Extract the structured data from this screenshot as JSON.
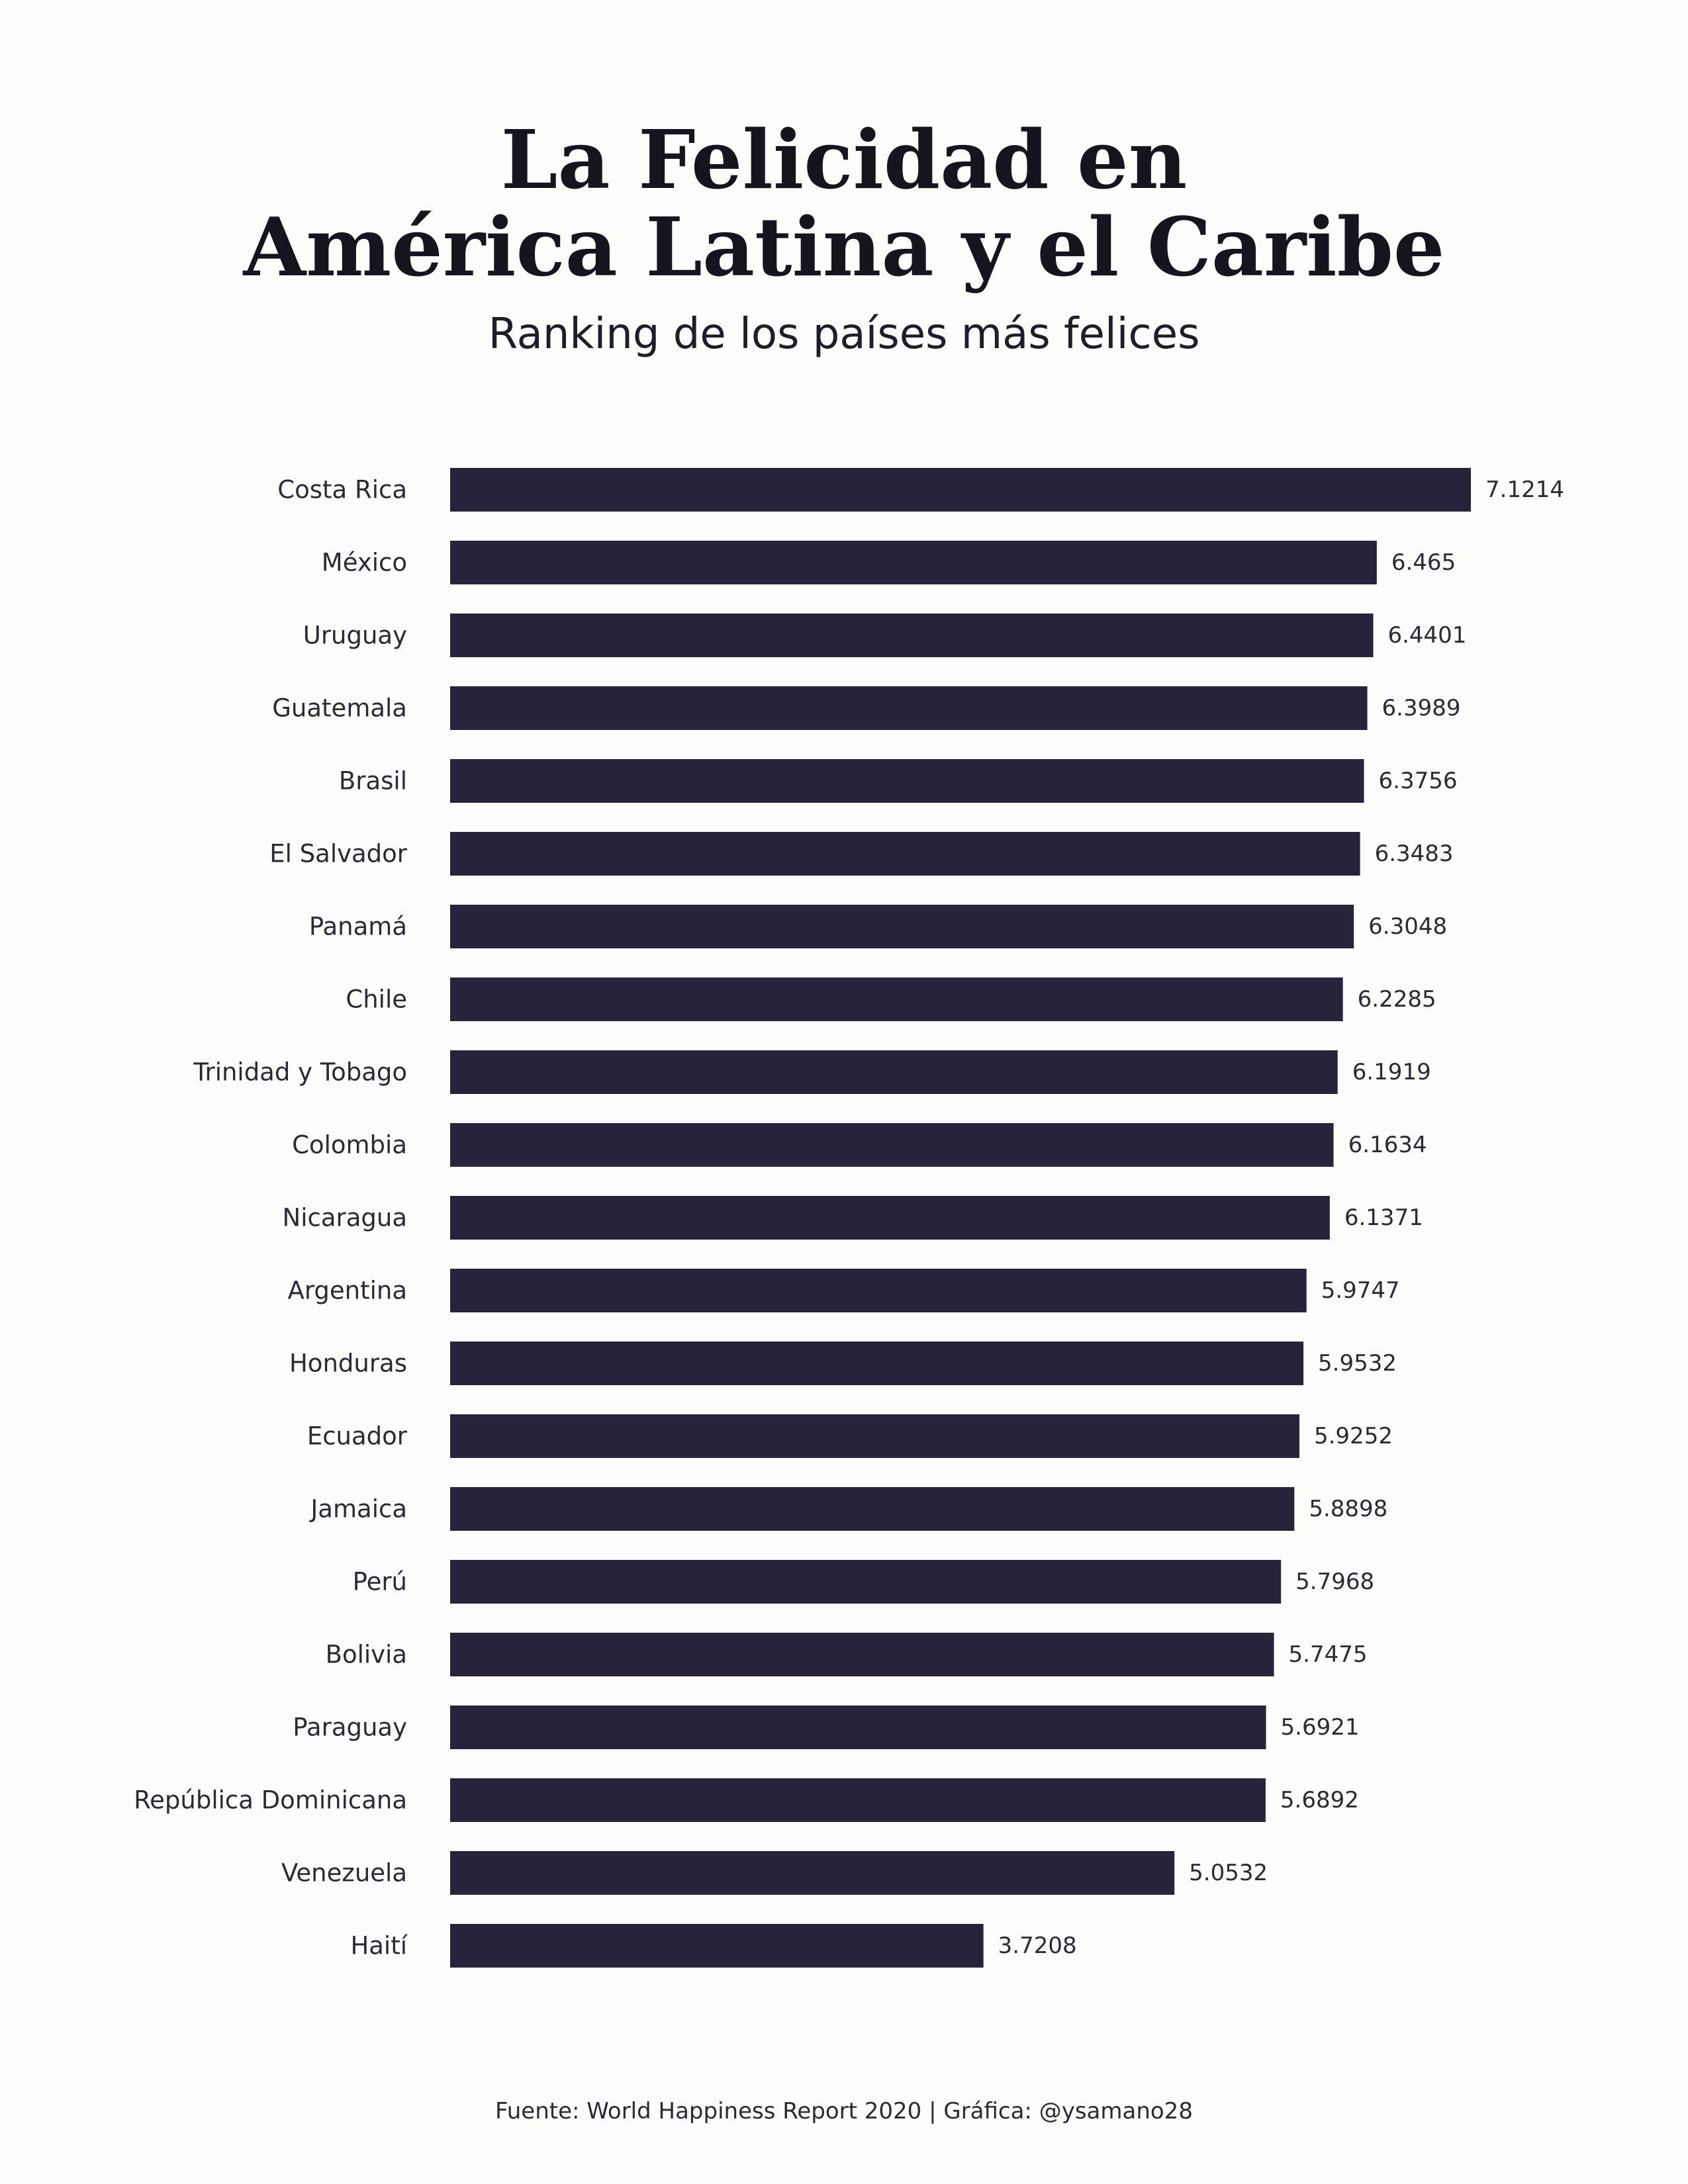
{
  "title_lines": [
    "La Felicidad en",
    "América Latina y el Caribe"
  ],
  "subtitle": "Ranking de los países más felices",
  "caption": "Fuente: World Happiness Report 2020 | Gráfica: @ysamano28",
  "colors": {
    "bar": "#26243a",
    "background": "#fcfcfa",
    "text": "#1e1e2a"
  },
  "chart_data": {
    "type": "bar",
    "orientation": "horizontal",
    "title": "La Felicidad en América Latina y el Caribe",
    "subtitle": "Ranking de los países más felices",
    "xlabel": "",
    "ylabel": "",
    "xlim": [
      0,
      7.1214
    ],
    "grid": false,
    "legend": "none",
    "categories": [
      "Costa Rica",
      "México",
      "Uruguay",
      "Guatemala",
      "Brasil",
      "El Salvador",
      "Panamá",
      "Chile",
      "Trinidad y Tobago",
      "Colombia",
      "Nicaragua",
      "Argentina",
      "Honduras",
      "Ecuador",
      "Jamaica",
      "Perú",
      "Bolivia",
      "Paraguay",
      "República Dominicana",
      "Venezuela",
      "Haití"
    ],
    "values": [
      7.1214,
      6.465,
      6.4401,
      6.3989,
      6.3756,
      6.3483,
      6.3048,
      6.2285,
      6.1919,
      6.1634,
      6.1371,
      5.9747,
      5.9532,
      5.9252,
      5.8898,
      5.7968,
      5.7475,
      5.6921,
      5.6892,
      5.0532,
      3.7208
    ],
    "value_labels": [
      "7.1214",
      "6.465",
      "6.4401",
      "6.3989",
      "6.3756",
      "6.3483",
      "6.3048",
      "6.2285",
      "6.1919",
      "6.1634",
      "6.1371",
      "5.9747",
      "5.9532",
      "5.9252",
      "5.8898",
      "5.7968",
      "5.7475",
      "5.6921",
      "5.6892",
      "5.0532",
      "3.7208"
    ]
  }
}
